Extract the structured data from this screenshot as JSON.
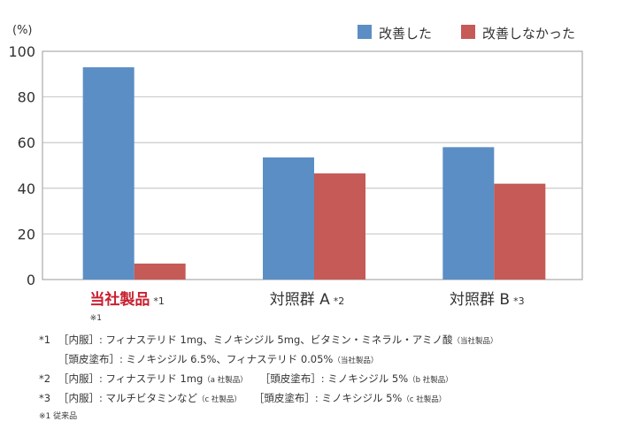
{
  "chart_data": {
    "type": "bar",
    "ylabel": "(%)",
    "ylim": [
      0,
      100
    ],
    "yticks": [
      0,
      20,
      40,
      60,
      80,
      100
    ],
    "grid": true,
    "legend_position": "top-right",
    "categories": [
      {
        "label": "当社製品",
        "suffix": "*1",
        "sub": "※1",
        "highlight": true
      },
      {
        "label": "対照群 A",
        "suffix": "*2",
        "sub": "",
        "highlight": false
      },
      {
        "label": "対照群 B",
        "suffix": "*3",
        "sub": "",
        "highlight": false
      }
    ],
    "series": [
      {
        "name": "改善した",
        "color": "#5b8ec4",
        "values": [
          93,
          53.5,
          58
        ]
      },
      {
        "name": "改善しなかった",
        "color": "#c55a57",
        "values": [
          7,
          46.5,
          42
        ]
      }
    ],
    "highlight_color": "#c8202f"
  },
  "notes": {
    "n1": {
      "mark": "*1",
      "text": "［内服］: フィナステリド 1mg、ミノキシジル 5mg、ビタミン・ミネラル・アミノ酸",
      "small": "（当社製品）"
    },
    "n1b": {
      "text": "［頭皮塗布］: ミノキシジル 6.5%、フィナステリド 0.05%",
      "small": "（当社製品）"
    },
    "n2": {
      "mark": "*2",
      "text_a": "［内服］: フィナステリド 1mg",
      "small_a": "（a 社製品）",
      "text_b": "［頭皮塗布］: ミノキシジル 5%",
      "small_b": "（b 社製品）"
    },
    "n3": {
      "mark": "*3",
      "text_a": "［内服］: マルチビタミンなど",
      "small_a": "（c 社製品）",
      "text_b": "［頭皮塗布］: ミノキシジル 5%",
      "small_b": "（c 社製品）"
    },
    "n4": {
      "text": "※1  従来品"
    }
  }
}
